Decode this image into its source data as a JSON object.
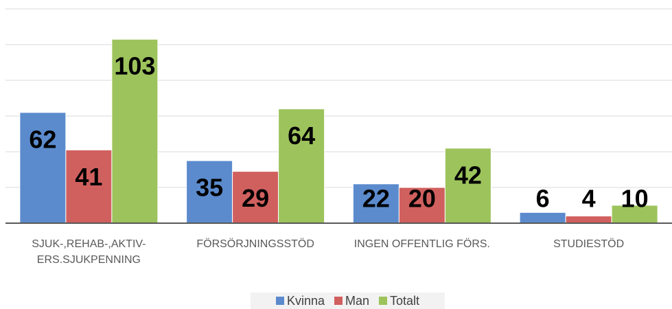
{
  "chart_data": {
    "type": "bar",
    "categories": [
      "SJUK-,REHAB-,AKTIV-ERS.SJUKPENNING",
      "FÖRSÖRJNINGSSTÖD",
      "INGEN OFFENTLIG FÖRS.",
      "STUDIESTÖD"
    ],
    "series": [
      {
        "name": "Kvinna",
        "color": "#5b8bcd",
        "values": [
          62,
          35,
          22,
          6
        ]
      },
      {
        "name": "Man",
        "color": "#d0605e",
        "values": [
          41,
          29,
          20,
          4
        ]
      },
      {
        "name": "Totalt",
        "color": "#9dc35c",
        "values": [
          103,
          64,
          42,
          10
        ]
      }
    ],
    "ylim": [
      0,
      120
    ],
    "yticks": [
      0,
      20,
      40,
      60,
      80,
      100,
      120
    ],
    "grid": true
  }
}
